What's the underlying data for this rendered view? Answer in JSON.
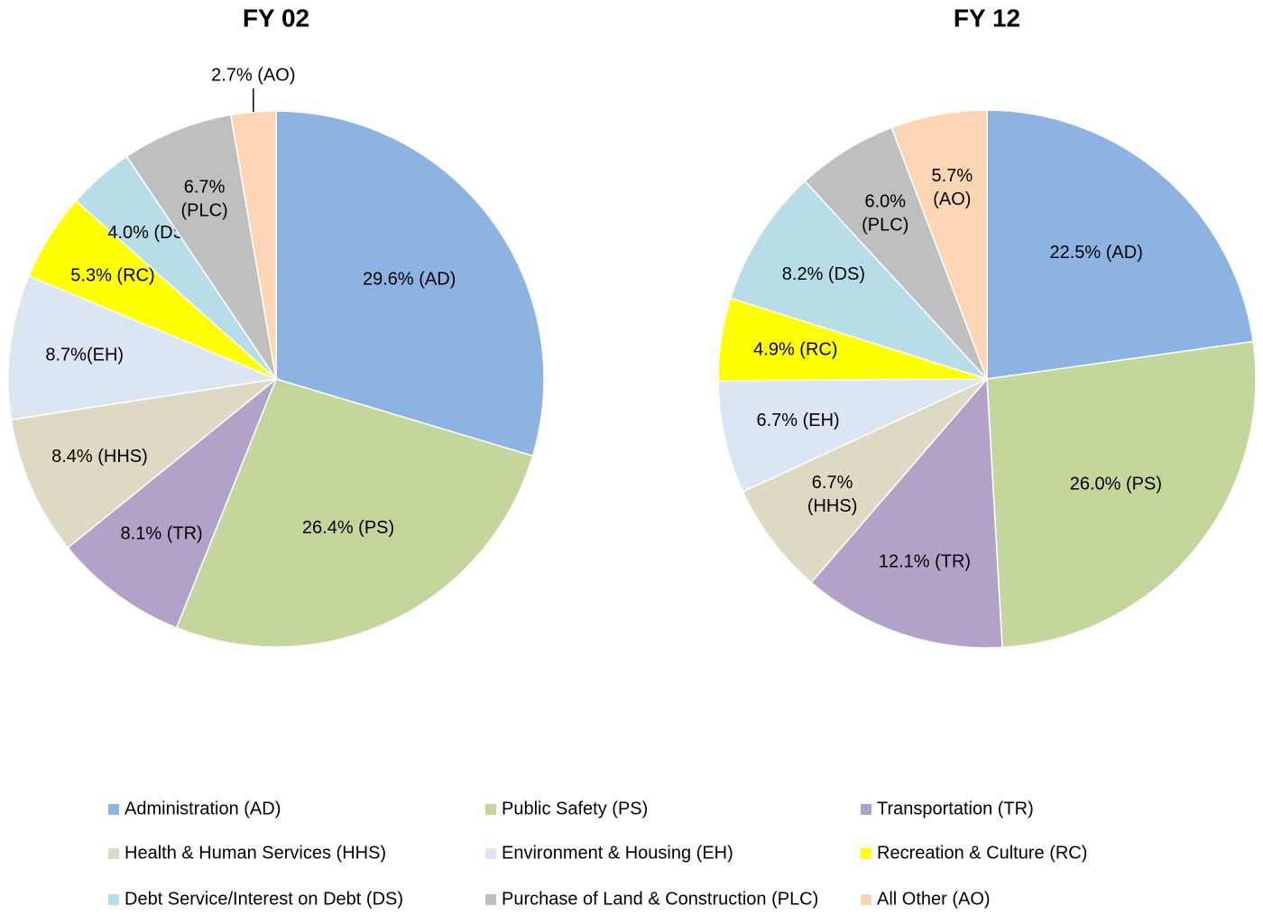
{
  "chart_data": [
    {
      "type": "pie",
      "title": "FY 02",
      "categories": [
        "Administration (AD)",
        "Public Safety (PS)",
        "Transportation (TR)",
        "Health & Human Services (HHS)",
        "Environment & Housing (EH)",
        "Recreation & Culture (RC)",
        "Debt Service/Interest on Debt (DS)",
        "Purchase of Land & Construction (PLC)",
        "All Other (AO)"
      ],
      "values": [
        29.6,
        26.4,
        8.1,
        8.4,
        8.7,
        5.3,
        4.0,
        6.7,
        2.7
      ],
      "value_labels": [
        "29.6% (AD)",
        "26.4% (PS)",
        "8.1% (TR)",
        "8.4% (HHS)",
        "8.7%(EH)",
        "5.3% (RC)",
        "4.0% (DS)",
        "6.7%\n(PLC)",
        "2.7% (AO)"
      ],
      "colors": [
        "#8db3e2",
        "#c3d69b",
        "#b3a2c7",
        "#ddd9c3",
        "#dce6f2",
        "#ffff00",
        "#b7dde8",
        "#bfbfbf",
        "#fcd5b5"
      ]
    },
    {
      "type": "pie",
      "title": "FY 12",
      "categories": [
        "Administration (AD)",
        "Public Safety (PS)",
        "Transportation (TR)",
        "Health & Human Services (HHS)",
        "Environment & Housing (EH)",
        "Recreation & Culture (RC)",
        "Debt Service/Interest on Debt (DS)",
        "Purchase of Land & Construction (PLC)",
        "All Other (AO)"
      ],
      "values": [
        22.5,
        26.0,
        12.1,
        6.7,
        6.7,
        4.9,
        8.2,
        6.0,
        5.7
      ],
      "value_labels": [
        "22.5% (AD)",
        "26.0% (PS)",
        "12.1% (TR)",
        "6.7%\n(HHS)",
        "6.7% (EH)",
        "4.9% (RC)",
        "8.2% (DS)",
        "6.0%\n(PLC)",
        "5.7%\n(AO)"
      ],
      "colors": [
        "#8db3e2",
        "#c3d69b",
        "#b3a2c7",
        "#ddd9c3",
        "#dce6f2",
        "#ffff00",
        "#b7dde8",
        "#bfbfbf",
        "#fcd5b5"
      ]
    }
  ]
}
